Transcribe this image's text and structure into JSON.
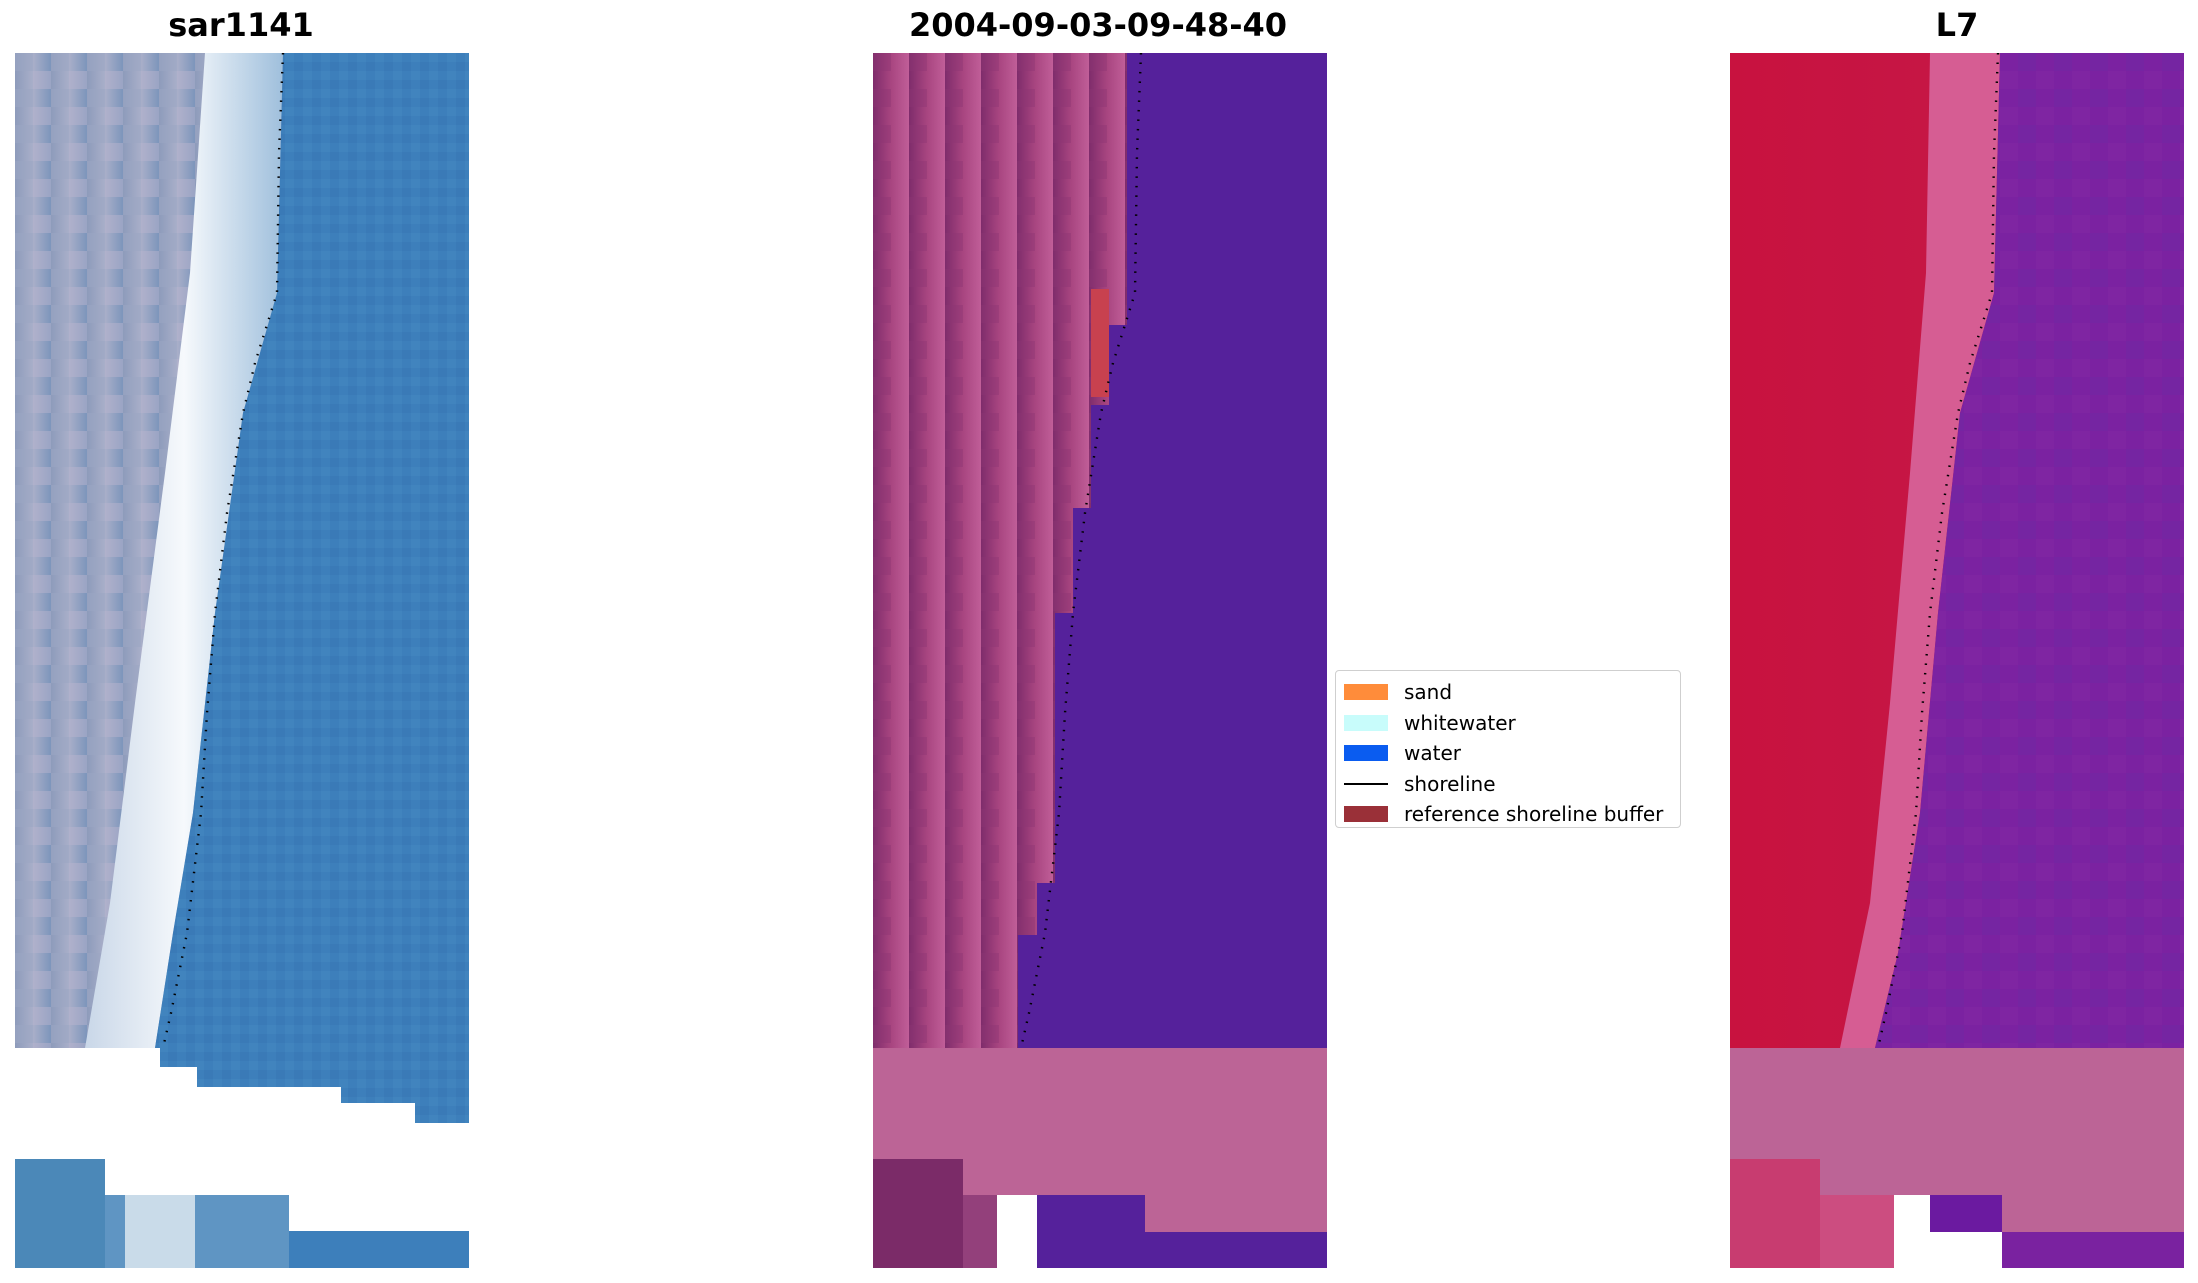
{
  "panels": [
    {
      "title": "sar1141",
      "image_name": "rgb-composite-image"
    },
    {
      "title": "2004-09-03-09-48-40",
      "image_name": "classified-image"
    },
    {
      "title": "L7",
      "image_name": "mndwi-image"
    }
  ],
  "legend": {
    "items": [
      {
        "label": "sand",
        "kind": "patch",
        "color": "#ff8c3a"
      },
      {
        "label": "whitewater",
        "kind": "patch",
        "color": "#c8fcfb"
      },
      {
        "label": "water",
        "kind": "patch",
        "color": "#0a5cf0"
      },
      {
        "label": "shoreline",
        "kind": "line",
        "color": "#000000"
      },
      {
        "label": "reference shoreline buffer",
        "kind": "patch",
        "color": "#9a3038"
      }
    ]
  },
  "colors": {
    "rgb_water": "#3c7fbb",
    "rgb_beach": "#eef4fa",
    "rgb_land": "#a8aec8",
    "class_land": "#b8508a",
    "class_land_dark": "#7a2b68",
    "class_water": "#55219b",
    "class_sand_patch": "#c84450",
    "mndwi_land": "#c21240",
    "mndwi_water": "#7a22a0",
    "mndwi_beach": "#d75a8e",
    "nodata_pink": "#bc6496",
    "shoreline_dots": "#000000"
  }
}
